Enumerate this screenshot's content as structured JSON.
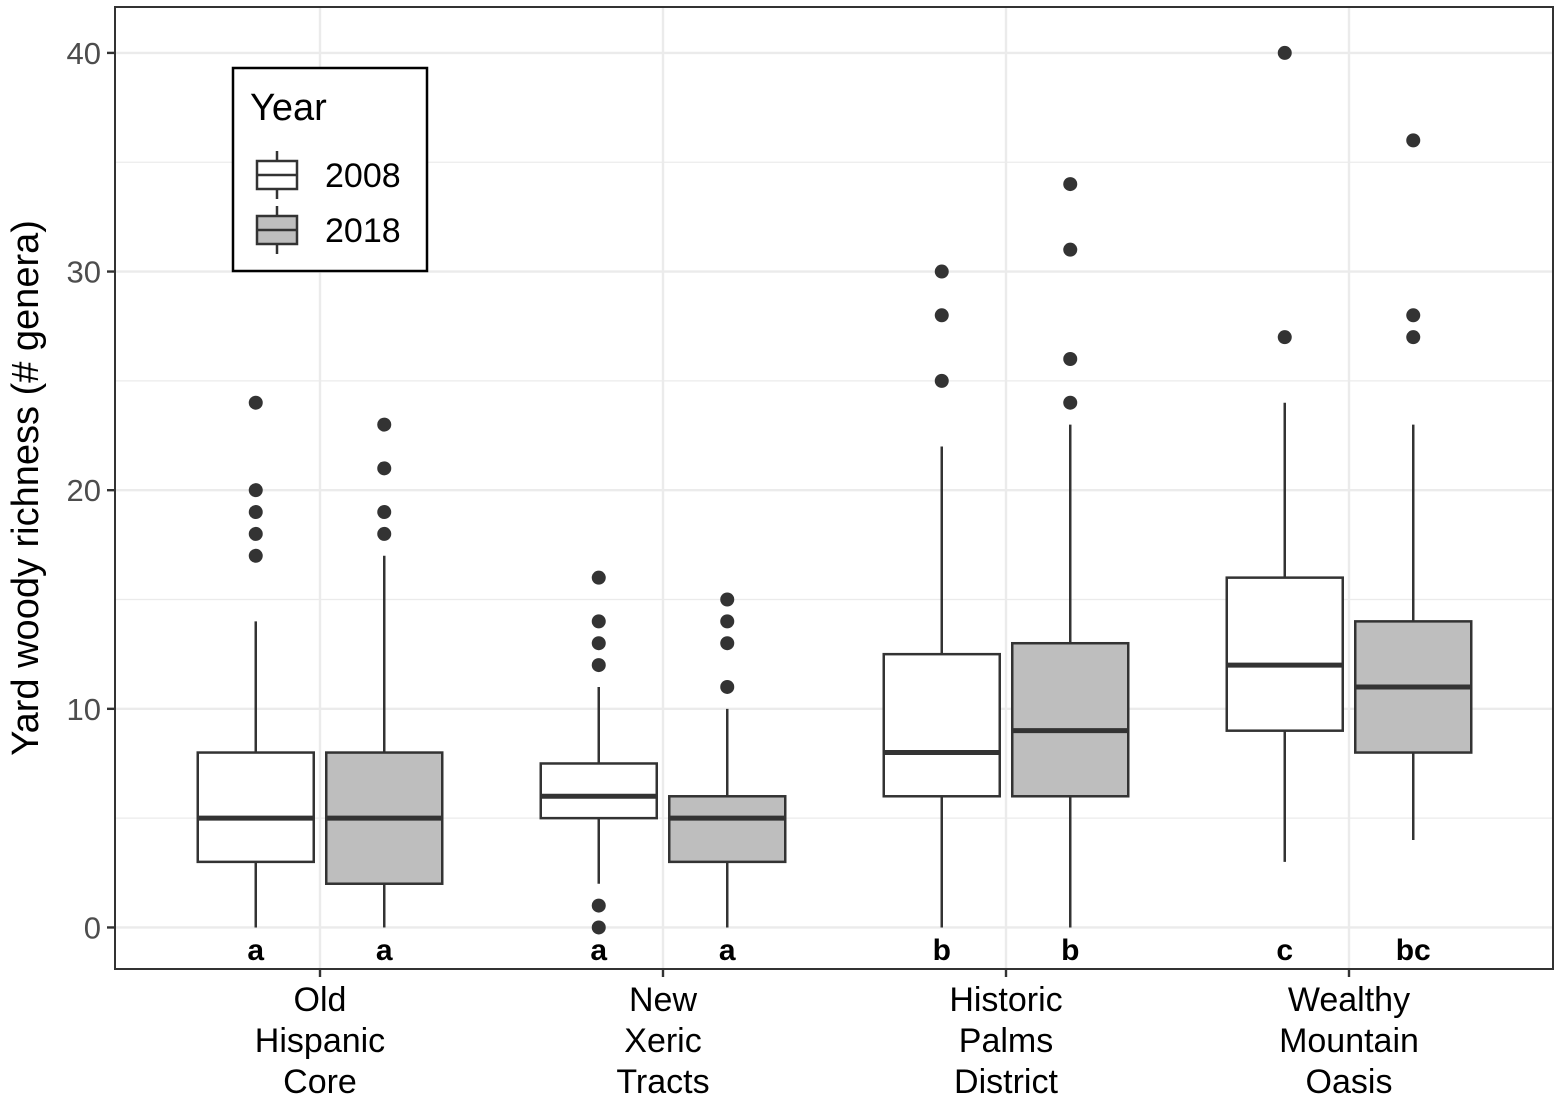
{
  "chart_data": {
    "type": "boxplot",
    "ylabel": "Yard woody richness (# genera)",
    "xlabel": "",
    "ylim": [
      -1.9,
      42.1
    ],
    "yticks": [
      0,
      10,
      20,
      30,
      40
    ],
    "grid": true,
    "categories": [
      {
        "lines": [
          "Old",
          "Hispanic",
          "Core"
        ]
      },
      {
        "lines": [
          "New",
          "Xeric",
          "Tracts"
        ]
      },
      {
        "lines": [
          "Historic",
          "Palms",
          "District"
        ]
      },
      {
        "lines": [
          "Wealthy",
          "Mountain",
          "Oasis"
        ]
      }
    ],
    "legend": {
      "title": "Year",
      "position": "top-left",
      "entries": [
        {
          "label": "2008",
          "fill": "#ffffff"
        },
        {
          "label": "2018",
          "fill": "#bebebe"
        }
      ]
    },
    "series": [
      {
        "name": "2008",
        "fill": "#ffffff",
        "boxes": [
          {
            "category": 0,
            "q1": 3,
            "median": 5,
            "q3": 8,
            "whisker_low": 0,
            "whisker_high": 14,
            "outliers": [
              17,
              18,
              19,
              20,
              24
            ],
            "letter": "a"
          },
          {
            "category": 1,
            "q1": 5,
            "median": 6,
            "q3": 7.5,
            "whisker_low": 2,
            "whisker_high": 11,
            "outliers": [
              0,
              1,
              12,
              13,
              14,
              16
            ],
            "letter": "a"
          },
          {
            "category": 2,
            "q1": 6,
            "median": 8,
            "q3": 12.5,
            "whisker_low": 0,
            "whisker_high": 22,
            "outliers": [
              25,
              28,
              30
            ],
            "letter": "b"
          },
          {
            "category": 3,
            "q1": 9,
            "median": 12,
            "q3": 16,
            "whisker_low": 3,
            "whisker_high": 24,
            "outliers": [
              27,
              40
            ],
            "letter": "c"
          }
        ]
      },
      {
        "name": "2018",
        "fill": "#bebebe",
        "boxes": [
          {
            "category": 0,
            "q1": 2,
            "median": 5,
            "q3": 8,
            "whisker_low": 0,
            "whisker_high": 17,
            "outliers": [
              18,
              19,
              21,
              23
            ],
            "letter": "a"
          },
          {
            "category": 1,
            "q1": 3,
            "median": 5,
            "q3": 6,
            "whisker_low": 0,
            "whisker_high": 10,
            "outliers": [
              11,
              13,
              14,
              15
            ],
            "letter": "a"
          },
          {
            "category": 2,
            "q1": 6,
            "median": 9,
            "q3": 13,
            "whisker_low": 0,
            "whisker_high": 23,
            "outliers": [
              24,
              26,
              31,
              34
            ],
            "letter": "b"
          },
          {
            "category": 3,
            "q1": 8,
            "median": 11,
            "q3": 14,
            "whisker_low": 4,
            "whisker_high": 23,
            "outliers": [
              27,
              28,
              36
            ],
            "letter": "bc"
          }
        ]
      }
    ],
    "colors": {
      "grid": "#ebebeb",
      "box_stroke": "#333333",
      "point": "#333333",
      "axis_text": "#4d4d4d",
      "panel_border": "#333333"
    }
  }
}
